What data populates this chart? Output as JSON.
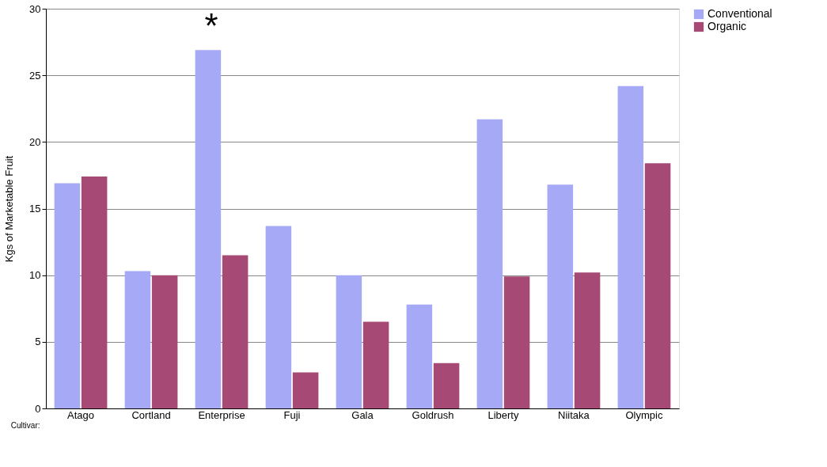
{
  "chart_data": {
    "type": "bar",
    "ylabel": "Kgs of Marketable Fruit",
    "xlabel": "Cultivar:",
    "categories": [
      "Atago",
      "Cortland",
      "Enterprise",
      "Fuji",
      "Gala",
      "Goldrush",
      "Liberty",
      "Niitaka",
      "Olympic"
    ],
    "series": [
      {
        "name": "Conventional",
        "color": "#a6a9f5",
        "values": [
          16.9,
          10.3,
          26.9,
          13.7,
          10.0,
          7.8,
          21.7,
          16.8,
          24.2
        ]
      },
      {
        "name": "Organic",
        "color": "#a64a75",
        "values": [
          17.4,
          10.0,
          11.5,
          2.7,
          6.5,
          3.4,
          9.9,
          10.2,
          18.4
        ]
      }
    ],
    "ylim": [
      0,
      30
    ],
    "yticks": [
      0,
      5,
      10,
      15,
      20,
      25,
      30
    ],
    "grid": "y",
    "legend": "right",
    "annotations": [
      {
        "text": "*",
        "x": "Enterprise",
        "y": 26.9
      }
    ]
  }
}
